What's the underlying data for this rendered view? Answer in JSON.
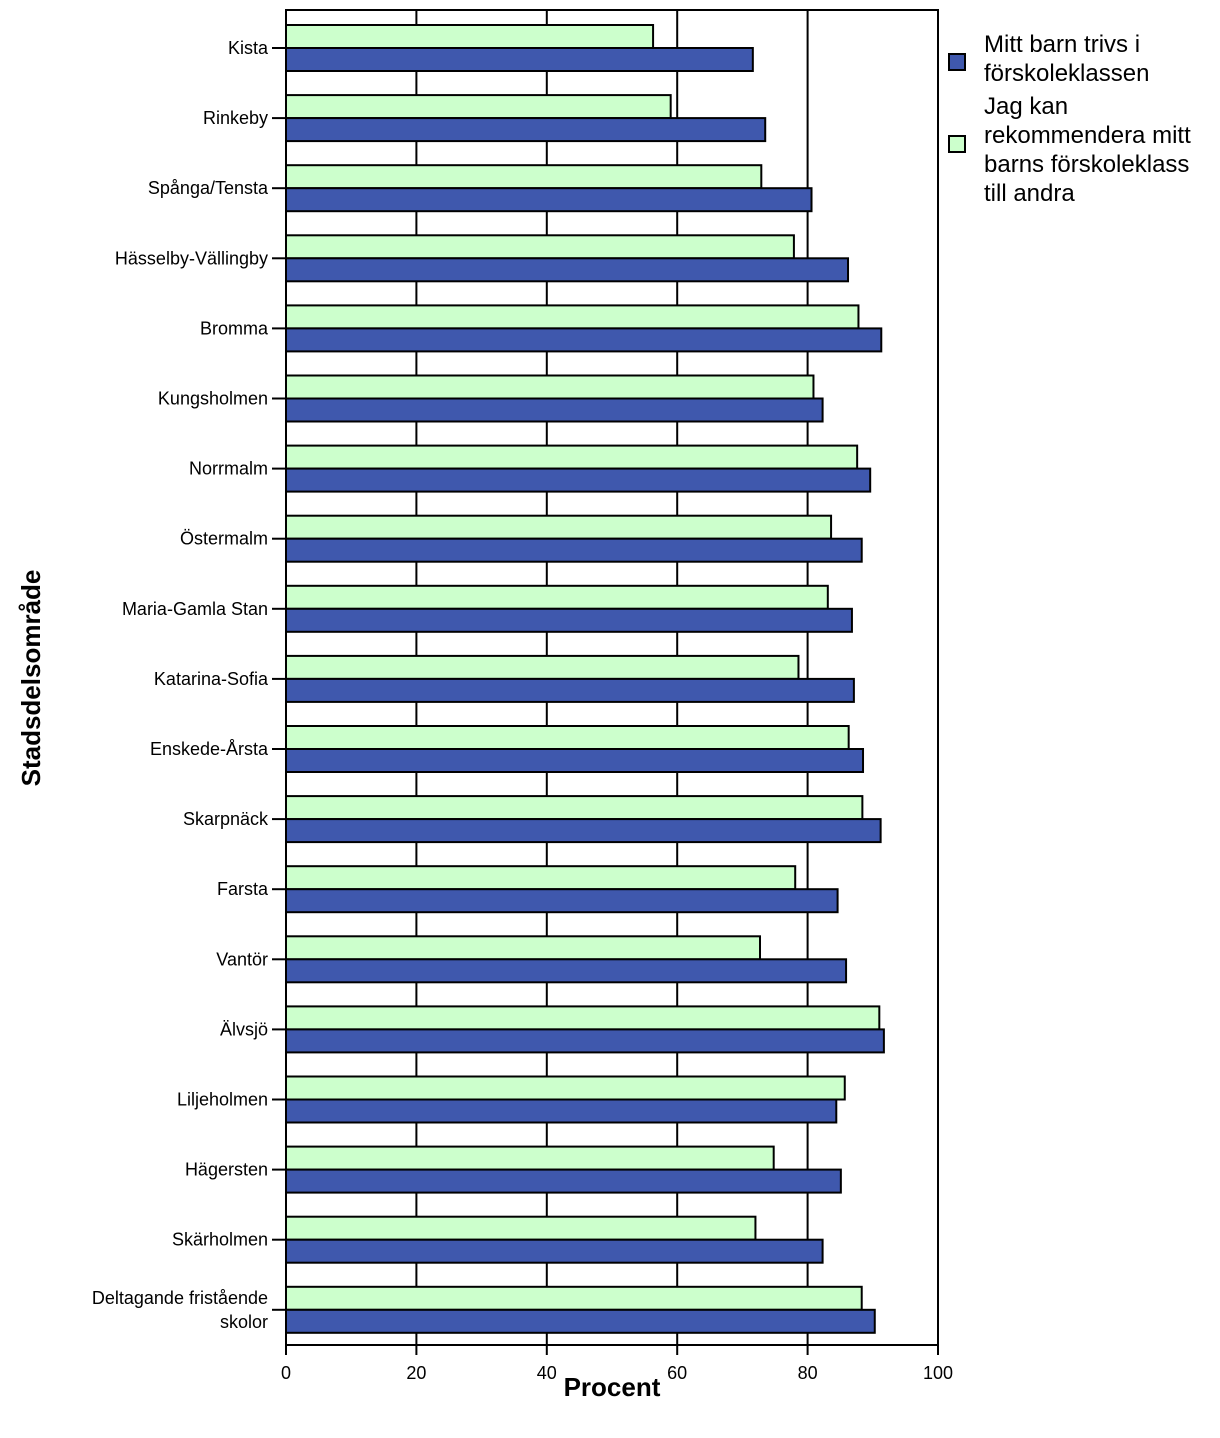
{
  "chart_data": {
    "type": "bar",
    "orientation": "horizontal",
    "xlabel": "Procent",
    "ylabel": "Stadsdelsområde",
    "xlim": [
      0,
      100
    ],
    "x_ticks": [
      "0",
      "20",
      "40",
      "60",
      "80",
      "100"
    ],
    "grid": "vertical lines at 60 and 80",
    "legend_position": "right",
    "categories": [
      [
        "Kista"
      ],
      [
        "Rinkeby"
      ],
      [
        "Spånga/Tensta"
      ],
      [
        "Hässelby-Vällingby"
      ],
      [
        "Bromma"
      ],
      [
        "Kungsholmen"
      ],
      [
        "Norrmalm"
      ],
      [
        "Östermalm"
      ],
      [
        "Maria-Gamla Stan"
      ],
      [
        "Katarina-Sofia"
      ],
      [
        "Enskede-Årsta"
      ],
      [
        "Skarpnäck"
      ],
      [
        "Farsta"
      ],
      [
        "Vantör"
      ],
      [
        "Älvsjö"
      ],
      [
        "Liljeholmen"
      ],
      [
        "Hägersten"
      ],
      [
        "Skärholmen"
      ],
      [
        "Deltagande fristående",
        "skolor"
      ]
    ],
    "series": [
      {
        "name": "Jag kan rekommendera mitt barns förskoleklass till andra",
        "color": "#ccffcc",
        "values": [
          56.3,
          59,
          72.9,
          77.9,
          87.8,
          80.9,
          87.6,
          83.6,
          83.1,
          78.6,
          86.3,
          88.4,
          78.1,
          72.7,
          91,
          85.7,
          74.8,
          72,
          88.3
        ]
      },
      {
        "name": "Mitt barn trivs i förskoleklassen",
        "color": "#3f58ad",
        "values": [
          71.6,
          73.5,
          80.6,
          86.2,
          91.3,
          82.3,
          89.6,
          88.3,
          86.8,
          87.1,
          88.5,
          91.2,
          84.6,
          85.9,
          91.7,
          84.4,
          85.1,
          82.3,
          90.3
        ]
      }
    ]
  },
  "legend": {
    "items": [
      {
        "label_lines": [
          "Mitt barn trivs i",
          "förskoleklassen"
        ],
        "color": "#3f58ad"
      },
      {
        "label_lines": [
          "Jag kan",
          "rekommendera mitt",
          "barns förskoleklass",
          "till andra"
        ],
        "color": "#ccffcc"
      }
    ]
  }
}
